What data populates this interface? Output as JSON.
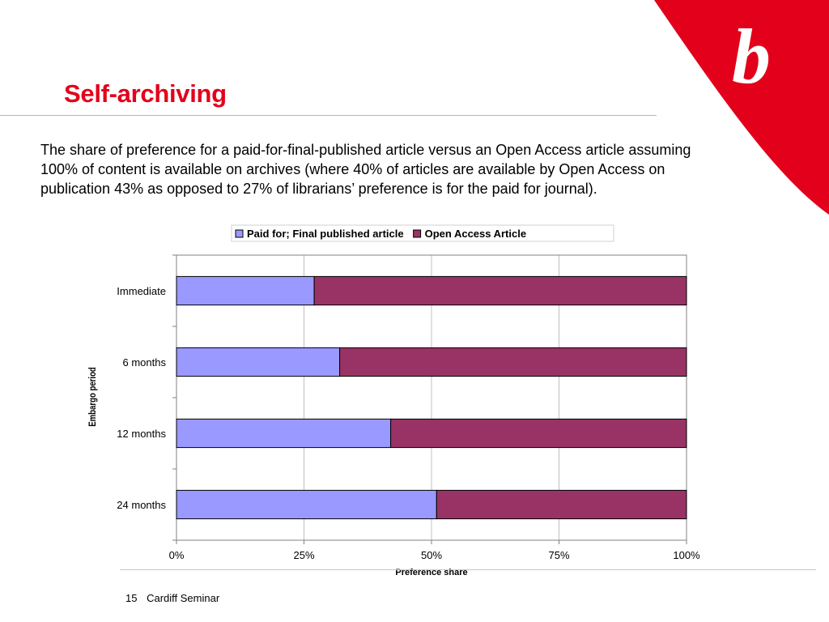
{
  "slide": {
    "title": "Self-archiving",
    "body": "The share of preference for a paid-for-final-published article versus an Open Access article assuming 100% of content is available on archives (where 40% of articles are available by Open Access on publication 43% as opposed to 27% of librarians’ preference is for the paid for journal).",
    "footer": {
      "page_number": "15",
      "label": "Cardiff Seminar"
    },
    "logo_icon": "b-logo-icon",
    "accent_color": "#e3001b"
  },
  "chart_data": {
    "type": "bar",
    "orientation": "horizontal",
    "stacked": "percent",
    "categories": [
      "Immediate",
      "6 months",
      "12 months",
      "24 months"
    ],
    "series": [
      {
        "name": "Paid for; Final published article",
        "color": "#9999ff",
        "values": [
          27,
          32,
          42,
          51
        ]
      },
      {
        "name": "Open Access Article",
        "color": "#993366",
        "values": [
          73,
          68,
          58,
          49
        ]
      }
    ],
    "xlabel": "Preference share",
    "ylabel": "Embargo period",
    "xlim": [
      0,
      100
    ],
    "xticks": [
      "0%",
      "25%",
      "50%",
      "75%",
      "100%"
    ],
    "grid": true,
    "legend": "top"
  }
}
